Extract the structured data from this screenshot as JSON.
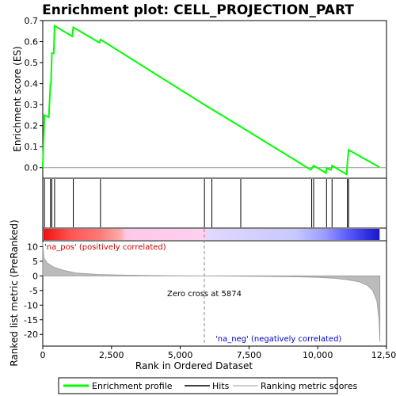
{
  "chart_data": {
    "type": "line",
    "title": "Enrichment plot: CELL_PROJECTION_PART",
    "xlabel": "Rank in Ordered Dataset",
    "ylabel_top": "Enrichment score (ES)",
    "ylabel_bottom": "Ranked list metric (PreRanked)",
    "x_ticks": [
      "0",
      "2,500",
      "5,000",
      "7,500",
      "10,000",
      "12,500"
    ],
    "x_tick_values": [
      0,
      2500,
      5000,
      7500,
      10000,
      12500
    ],
    "xlim": [
      0,
      12500
    ],
    "es_ylim": [
      -0.05,
      0.7
    ],
    "es_ticks": [
      {
        "v": 0.0,
        "label": "0.0"
      },
      {
        "v": 0.1,
        "label": "0.1"
      },
      {
        "v": 0.2,
        "label": "0.2"
      },
      {
        "v": 0.3,
        "label": "0.3"
      },
      {
        "v": 0.4,
        "label": "0.4"
      },
      {
        "v": 0.5,
        "label": "0.5"
      },
      {
        "v": 0.6,
        "label": "0.6"
      },
      {
        "v": 0.7,
        "label": "0.7"
      }
    ],
    "metric_ylim": [
      -24,
      12
    ],
    "metric_ticks": [
      {
        "v": 10,
        "label": "10"
      },
      {
        "v": 5,
        "label": "5"
      },
      {
        "v": 0,
        "label": "0"
      },
      {
        "v": -5,
        "label": "-5"
      },
      {
        "v": -10,
        "label": "-10"
      },
      {
        "v": -15,
        "label": "-15"
      },
      {
        "v": -20,
        "label": "-20"
      }
    ],
    "series": [
      {
        "name": "Enrichment profile",
        "color": "#00ff00",
        "points": [
          [
            0,
            0.0
          ],
          [
            60,
            0.25
          ],
          [
            220,
            0.24
          ],
          [
            280,
            0.4
          ],
          [
            300,
            0.4
          ],
          [
            330,
            0.545
          ],
          [
            400,
            0.545
          ],
          [
            430,
            0.675
          ],
          [
            1070,
            0.625
          ],
          [
            1110,
            0.668
          ],
          [
            2060,
            0.595
          ],
          [
            2100,
            0.61
          ],
          [
            5874,
            0.3
          ],
          [
            7200,
            0.195
          ],
          [
            9750,
            -0.01
          ],
          [
            9850,
            0.01
          ],
          [
            10300,
            -0.025
          ],
          [
            10320,
            -0.002
          ],
          [
            10480,
            -0.01
          ],
          [
            10520,
            0.01
          ],
          [
            11050,
            -0.032
          ],
          [
            11080,
            0.025
          ],
          [
            11120,
            0.085
          ],
          [
            12250,
            0.002
          ]
        ]
      }
    ],
    "hits": [
      60,
      280,
      330,
      430,
      1110,
      2100,
      5880,
      6150,
      7200,
      9780,
      9850,
      10320,
      10520,
      11080,
      11120
    ],
    "metric_curve": [
      [
        0,
        11.5
      ],
      [
        40,
        6.2
      ],
      [
        150,
        4.5
      ],
      [
        400,
        3.0
      ],
      [
        800,
        1.8
      ],
      [
        1200,
        1.0
      ],
      [
        2000,
        0.5
      ],
      [
        3000,
        0.25
      ],
      [
        4500,
        0.1
      ],
      [
        5874,
        0.0
      ],
      [
        7500,
        -0.15
      ],
      [
        9000,
        -0.3
      ],
      [
        10000,
        -0.5
      ],
      [
        10600,
        -0.8
      ],
      [
        11000,
        -1.2
      ],
      [
        11500,
        -2.0
      ],
      [
        11800,
        -3.2
      ],
      [
        12000,
        -5.0
      ],
      [
        12150,
        -8.5
      ],
      [
        12230,
        -15.0
      ],
      [
        12260,
        -22.5
      ]
    ],
    "zero_cross_rank": 5874,
    "colorbar_stops": [
      {
        "x": 0,
        "color": "#ee1111"
      },
      {
        "x": 1000,
        "color": "#ff5555"
      },
      {
        "x": 2000,
        "color": "#ff7777"
      },
      {
        "x": 2800,
        "color": "#ffaaaa"
      },
      {
        "x": 3000,
        "color": "#ffc8e8"
      },
      {
        "x": 5874,
        "color": "#ffd0f0"
      },
      {
        "x": 6000,
        "color": "#e0d8ff"
      },
      {
        "x": 9200,
        "color": "#c8c8ff"
      },
      {
        "x": 10300,
        "color": "#9898ff"
      },
      {
        "x": 11000,
        "color": "#6060ff"
      },
      {
        "x": 11800,
        "color": "#3030e0"
      },
      {
        "x": 12250,
        "color": "#1818c8"
      }
    ],
    "annotations": {
      "pos_label": "'na_pos' (positively correlated)",
      "neg_label": "'na_neg' (negatively correlated)",
      "zero_cross_label": "Zero cross at 5874"
    },
    "legend": {
      "placement": "bottom",
      "items": [
        {
          "label": "Enrichment profile",
          "color": "#00ff00"
        },
        {
          "label": "Hits",
          "color": "#000000"
        },
        {
          "label": "Ranking metric scores",
          "color": "#bbbbbb"
        }
      ]
    },
    "colors": {
      "es_line": "#00ff00",
      "hit_line": "#000000",
      "metric_fill": "#bbbbbb",
      "pos_text": "#cc0000",
      "neg_text": "#0000cc"
    }
  }
}
